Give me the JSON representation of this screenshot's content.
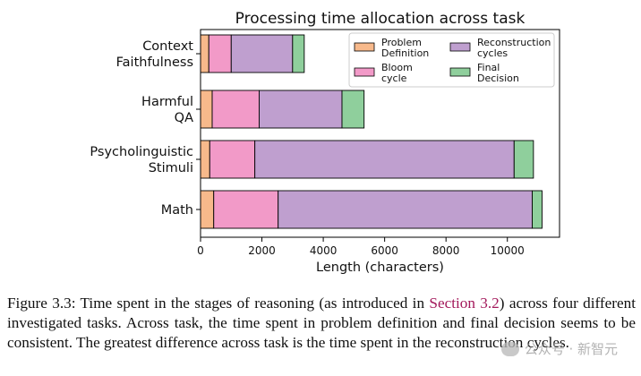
{
  "chart_data": {
    "type": "bar",
    "orientation": "horizontal",
    "stacked": true,
    "title": "Processing time allocation across task",
    "xlabel": "Length (characters)",
    "ylabel": "",
    "xlim": [
      0,
      11700
    ],
    "xticks": [
      0,
      2000,
      4000,
      6000,
      8000,
      10000
    ],
    "xtick_labels": [
      "0",
      "2000",
      "4000",
      "6000",
      "8000",
      "10000"
    ],
    "grid": false,
    "legend_position": "top-right",
    "categories": [
      "Context Faithfulness",
      "Harmful QA",
      "Psycholinguistic Stimuli",
      "Math"
    ],
    "category_label_lines": [
      [
        "Context",
        "Faithfulness"
      ],
      [
        "Harmful",
        "QA"
      ],
      [
        "Psycholinguistic",
        "Stimuli"
      ],
      [
        "Math"
      ]
    ],
    "series": [
      {
        "name": "Problem Definition",
        "legend_lines": [
          "Problem",
          "Definition"
        ],
        "color": "#f7b98b",
        "values": [
          270,
          380,
          300,
          430
        ]
      },
      {
        "name": "Bloom cycle",
        "legend_lines": [
          "Bloom",
          "cycle"
        ],
        "color": "#f29ac8",
        "values": [
          730,
          1530,
          1470,
          2100
        ]
      },
      {
        "name": "Reconstruction cycles",
        "legend_lines": [
          "Reconstruction",
          "cycles"
        ],
        "color": "#bf9fcf",
        "values": [
          2000,
          2700,
          8450,
          8280
        ]
      },
      {
        "name": "Final Decision",
        "legend_lines": [
          "Final",
          "Decision"
        ],
        "color": "#8fcf9c",
        "values": [
          380,
          720,
          630,
          320
        ]
      }
    ]
  },
  "caption": {
    "prefix": "Figure 3.3: Time spent in the stages of reasoning (as introduced in ",
    "ref": "Section 3.2",
    "suffix": ") across four different investigated tasks. Across task, the time spent in problem definition and final decision seems to be consistent. The greatest difference across task is the time spent in the reconstruction cycles."
  },
  "watermark": {
    "text": "公众号 · 新智元"
  }
}
